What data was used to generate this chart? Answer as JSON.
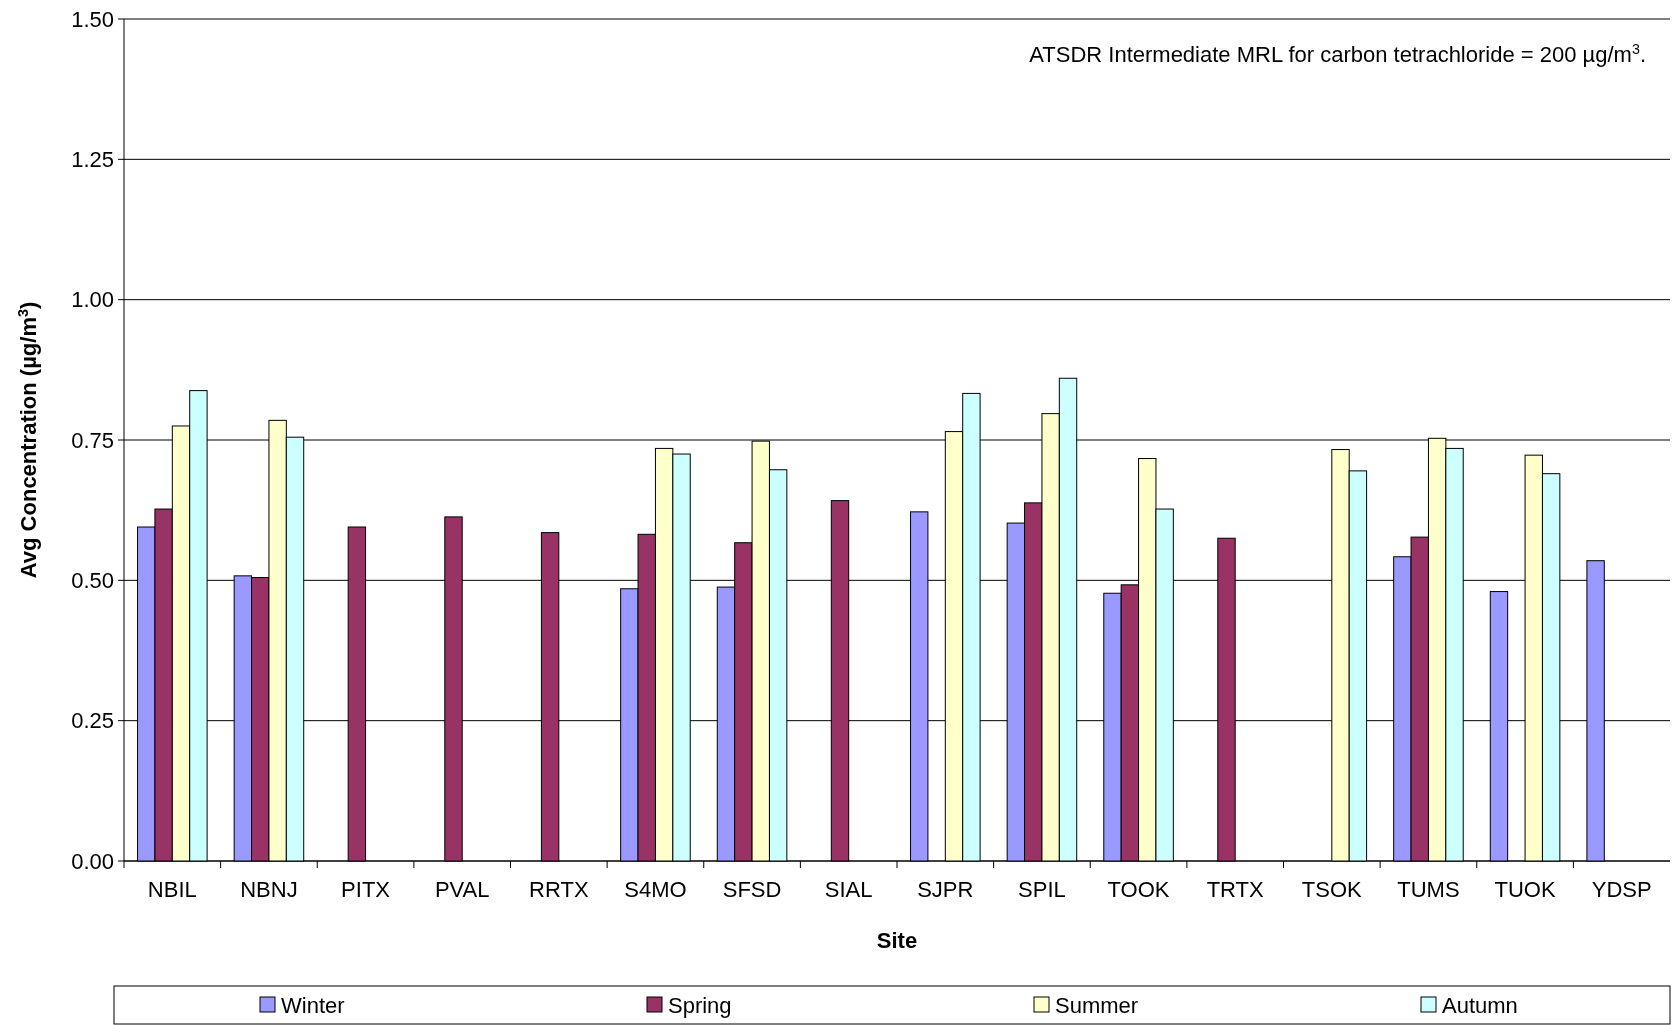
{
  "chart_data": {
    "type": "bar",
    "xlabel": "Site",
    "ylabel": "Avg Concentration (µg/m$^{3}$)",
    "annotations": [
      "ATSDR Intermediate MRL for carbon tetrachloride = 200 µg/m$^{3}$."
    ],
    "categories": [
      "NBIL",
      "NBNJ",
      "PITX",
      "PVAL",
      "RRTX",
      "S4MO",
      "SFSD",
      "SIAL",
      "SJPR",
      "SPIL",
      "TOOK",
      "TRTX",
      "TSOK",
      "TUMS",
      "TUOK",
      "YDSP"
    ],
    "series": [
      {
        "name": "Winter",
        "color": "#9999ff",
        "values": [
          0.595,
          0.508,
          null,
          null,
          null,
          0.485,
          0.488,
          null,
          0.622,
          0.602,
          0.477,
          null,
          null,
          0.542,
          0.48,
          0.535
        ]
      },
      {
        "name": "Spring",
        "color": "#993366",
        "values": [
          0.627,
          0.505,
          0.595,
          0.613,
          0.585,
          0.582,
          0.567,
          0.642,
          null,
          0.638,
          0.492,
          0.575,
          null,
          0.577,
          null,
          null
        ]
      },
      {
        "name": "Summer",
        "color": "#ffffcc",
        "values": [
          0.775,
          0.785,
          null,
          null,
          null,
          0.735,
          0.748,
          null,
          0.765,
          0.797,
          0.717,
          null,
          0.733,
          0.753,
          0.723,
          null
        ]
      },
      {
        "name": "Autumn",
        "color": "#ccffff",
        "values": [
          0.838,
          0.755,
          null,
          null,
          null,
          0.725,
          0.697,
          null,
          0.833,
          0.86,
          0.627,
          null,
          0.695,
          0.735,
          0.69,
          null
        ]
      }
    ],
    "ylim": [
      0,
      1.5
    ],
    "yticks": [
      {
        "value": 0,
        "label": "0.00"
      },
      {
        "value": 0.25,
        "label": "0.25"
      },
      {
        "value": 0.5,
        "label": "0.50"
      },
      {
        "value": 0.75,
        "label": "0.75"
      },
      {
        "value": 1,
        "label": "1.00"
      },
      {
        "value": 1.25,
        "label": "1.25"
      },
      {
        "value": 1.5,
        "label": "1.50"
      }
    ],
    "grid": "y",
    "legend": "bottom"
  }
}
